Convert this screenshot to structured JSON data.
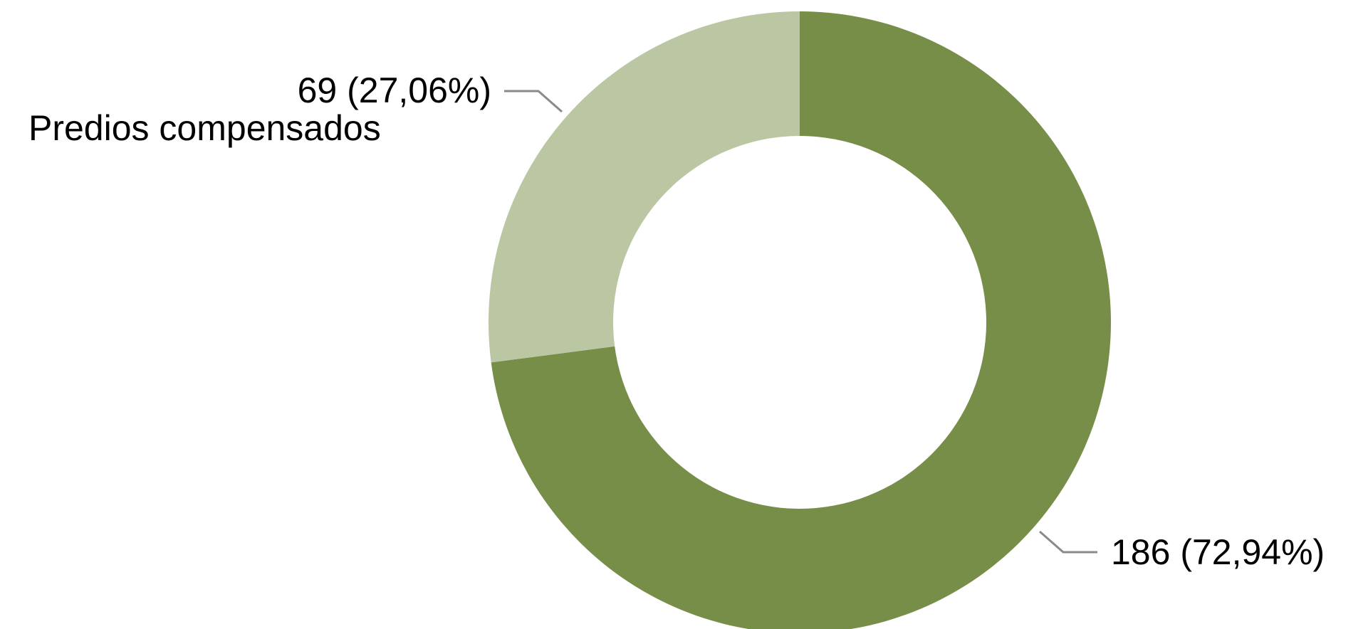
{
  "chart_data": {
    "type": "pie",
    "donut": true,
    "categories": [
      "Predios compensados",
      ""
    ],
    "values": [
      69,
      186
    ],
    "percent_labels": [
      "27,06%",
      "72,94%"
    ],
    "data_labels": [
      "69 (27,06%)",
      "186 (72,94%)"
    ],
    "category_label": "Predios compensados",
    "colors": [
      "#bbc6a3",
      "#778e48"
    ],
    "leader_color": "#8a8a8a"
  }
}
